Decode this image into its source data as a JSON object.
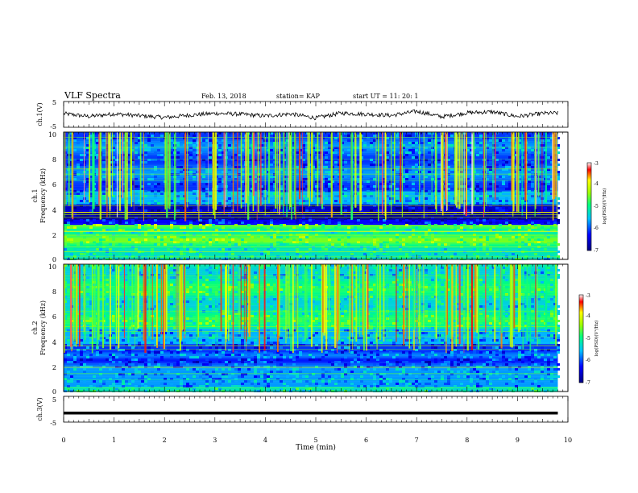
{
  "header": {
    "title": "VLF Spectra",
    "date": "Feb. 13, 2018",
    "station": "station= KAP",
    "start": "start UT =   11: 20: 1"
  },
  "chart_data": [
    {
      "type": "line",
      "panel": "ch1-waveform",
      "ylabel": "ch.1(V)",
      "ylim": [
        -5,
        5
      ],
      "yticks": [
        "5",
        "-5"
      ],
      "xlim": [
        0,
        10
      ],
      "description_values": "noisy waveform fluctuating between about -2 and 2 V",
      "x": [
        0,
        0.5,
        1,
        1.5,
        2,
        2.5,
        3,
        3.5,
        4,
        4.5,
        5,
        5.5,
        6,
        6.5,
        7,
        7.5,
        8,
        8.5,
        9,
        9.5,
        9.8
      ],
      "y": [
        0.3,
        -0.8,
        0.2,
        -0.5,
        -1.2,
        -0.3,
        0.4,
        0.1,
        -0.6,
        0.2,
        -1.4,
        0.5,
        0.1,
        -0.4,
        1.2,
        -0.9,
        0.6,
        1.0,
        -0.8,
        0.4,
        0.5
      ]
    },
    {
      "type": "heatmap",
      "panel": "ch1-spectrogram",
      "ylabel_line1": "ch.1",
      "ylabel_line2": "Frequency (kHz)",
      "ylim": [
        0,
        10
      ],
      "yticks": [
        "0",
        "2",
        "4",
        "6",
        "8",
        "10"
      ],
      "xlim": [
        0,
        10
      ],
      "colorbar": {
        "label": "log(PSD)(V²/Hz)",
        "range": [
          -7,
          -3
        ],
        "ticks": [
          "-3",
          "-4",
          "-5",
          "-6",
          "-7"
        ]
      }
    },
    {
      "type": "heatmap",
      "panel": "ch2-spectrogram",
      "ylabel_line1": "ch.2",
      "ylabel_line2": "Frequency (kHz)",
      "ylim": [
        0,
        10
      ],
      "yticks": [
        "0",
        "2",
        "4",
        "6",
        "8",
        "10"
      ],
      "xlim": [
        0,
        10
      ],
      "colorbar": {
        "label": "log(PSD)(V²/Hz)",
        "range": [
          -7,
          -3
        ],
        "ticks": [
          "-3",
          "-4",
          "-5",
          "-6",
          "-7"
        ]
      }
    },
    {
      "type": "line",
      "panel": "ch3-waveform",
      "ylabel": "ch.3(V)",
      "ylim": [
        -5,
        5
      ],
      "yticks": [
        "5",
        "-5"
      ],
      "xlim": [
        0,
        10
      ],
      "xlabel": "Time (min)",
      "xticks": [
        "0",
        "1",
        "2",
        "3",
        "4",
        "5",
        "6",
        "7",
        "8",
        "9",
        "10"
      ],
      "x": [
        0,
        9.8
      ],
      "y": [
        -1.5,
        -1.5
      ]
    }
  ]
}
